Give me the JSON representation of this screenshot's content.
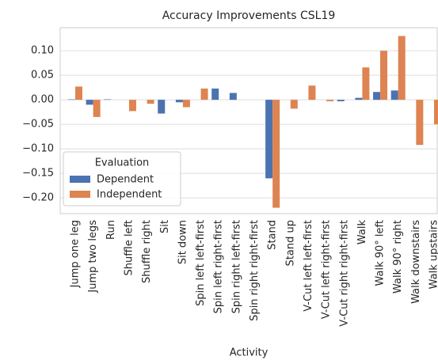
{
  "chart_data": {
    "type": "bar",
    "title": "Accuracy Improvements CSL19",
    "x_label": "Activity",
    "categories": [
      "Jump one leg",
      "Jump two legs",
      "Run",
      "Shuffle left",
      "Shuffle right",
      "Sit",
      "Sit down",
      "Spin left left-first",
      "Spin left right-first",
      "Spin right left-first",
      "Spin right right-first",
      "Stand",
      "Stand up",
      "V-Cut left left-first",
      "V-Cut left right-first",
      "V-Cut right right-first",
      "Walk",
      "Walk 90° left",
      "Walk 90° right",
      "Walk downstairs",
      "Walk upstairs"
    ],
    "series": [
      {
        "name": "Dependent",
        "color": "#4c72b0",
        "values": [
          0.001,
          -0.01,
          0.001,
          0,
          0,
          -0.028,
          -0.005,
          0,
          0.023,
          0.014,
          0,
          -0.16,
          0,
          0,
          0,
          -0.003,
          0.004,
          0.016,
          0.019,
          0,
          0
        ]
      },
      {
        "name": "Independent",
        "color": "#dd8452",
        "values": [
          0.027,
          -0.035,
          0,
          -0.023,
          -0.008,
          0,
          -0.015,
          0.023,
          0,
          0,
          0,
          -0.22,
          -0.018,
          0.029,
          -0.003,
          0,
          0.066,
          0.1,
          0.13,
          -0.092,
          -0.05
        ]
      }
    ],
    "legend_title": "Evaluation",
    "legend": "lower left",
    "ylim": [
      -0.232,
      0.147
    ],
    "yticks": [
      {
        "value": 0.1,
        "label": "0.10"
      },
      {
        "value": 0.05,
        "label": "0.05"
      },
      {
        "value": 0,
        "label": "0.00"
      },
      {
        "value": -0.05,
        "label": "−0.05"
      },
      {
        "value": -0.1,
        "label": "−0.10"
      },
      {
        "value": -0.15,
        "label": "−0.15"
      },
      {
        "value": -0.2,
        "label": "−0.20"
      }
    ],
    "grid": true
  }
}
